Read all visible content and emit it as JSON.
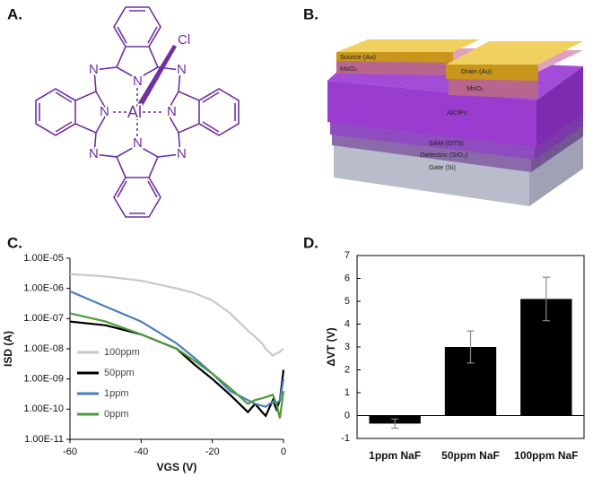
{
  "structure": {
    "panel_label": "A.",
    "atoms": [
      "N",
      "N",
      "N",
      "N",
      "N",
      "N",
      "N",
      "N"
    ],
    "metal": "Al",
    "axial": "Cl"
  },
  "device": {
    "panel_label": "B.",
    "labels": [
      "Source (Au)",
      "MoO₃",
      "Drain (Au)",
      "MoO₃",
      "AlClPc",
      "SAM (OTS)",
      "Dielectric (SiO₂)",
      "Gate (Si)"
    ]
  },
  "chart_data": [
    {
      "type": "line",
      "panel_label": "C.",
      "xlabel": "VGS (V)",
      "ylabel": "ISD (A)",
      "log_y": true,
      "legend": "lower left",
      "x": [
        -60,
        -50,
        -40,
        -30,
        -25,
        -20,
        -15,
        -10,
        -8,
        -6,
        -5,
        -3,
        -2,
        -1,
        0
      ],
      "series": [
        {
          "name": "100ppm",
          "color": "#c8c8c8",
          "values": [
            3e-06,
            2.5e-06,
            1.8e-06,
            1e-06,
            7e-07,
            4e-07,
            1.5e-07,
            4e-08,
            2.5e-08,
            1.5e-08,
            1e-08,
            6e-09,
            7e-09,
            8e-09,
            1e-08
          ]
        },
        {
          "name": "50ppm",
          "color": "#000000",
          "values": [
            8e-08,
            6e-08,
            3e-08,
            1e-08,
            3e-09,
            1e-09,
            3e-10,
            8e-11,
            1.5e-10,
            8e-11,
            6e-11,
            2e-10,
            1e-10,
            2e-10,
            2e-09
          ]
        },
        {
          "name": "1ppm",
          "color": "#4a7ebb",
          "values": [
            8e-07,
            2.5e-07,
            8e-08,
            1.5e-08,
            5e-09,
            1.5e-09,
            4e-10,
            2e-10,
            1.5e-10,
            1.3e-10,
            1.2e-10,
            1.8e-10,
            1.5e-10,
            2e-10,
            1e-09
          ]
        },
        {
          "name": "0ppm",
          "color": "#4e9a3a",
          "values": [
            1.5e-07,
            8e-08,
            3e-08,
            1e-08,
            4e-09,
            1.5e-09,
            5e-10,
            1.5e-10,
            2e-10,
            2.3e-10,
            2.5e-10,
            3e-10,
            1.5e-10,
            5e-11,
            4e-10
          ]
        }
      ],
      "xlim": [
        -60,
        0
      ],
      "xticks": [
        -60,
        -40,
        -20,
        0
      ],
      "ylim": [
        1e-11,
        1e-05
      ],
      "yticks": [
        {
          "value": 1e-11,
          "label": "1.00E-11"
        },
        {
          "value": 1e-10,
          "label": "1.00E-10"
        },
        {
          "value": 1e-09,
          "label": "1.00E-09"
        },
        {
          "value": 1e-08,
          "label": "1.00E-08"
        },
        {
          "value": 1e-07,
          "label": "1.00E-07"
        },
        {
          "value": 1e-06,
          "label": "1.00E-06"
        },
        {
          "value": 1e-05,
          "label": "1.00E-05"
        }
      ]
    },
    {
      "type": "bar",
      "panel_label": "D.",
      "ylabel": "ΔVT (V)",
      "categories": [
        "1ppm NaF",
        "50ppm NaF",
        "100ppm NaF"
      ],
      "values": [
        -0.35,
        3.0,
        5.1
      ],
      "errors": [
        0.2,
        0.7,
        0.95
      ],
      "color": "#000000",
      "ylim": [
        -1,
        7
      ],
      "yticks": [
        -1,
        0,
        1,
        2,
        3,
        4,
        5,
        6,
        7
      ]
    }
  ]
}
